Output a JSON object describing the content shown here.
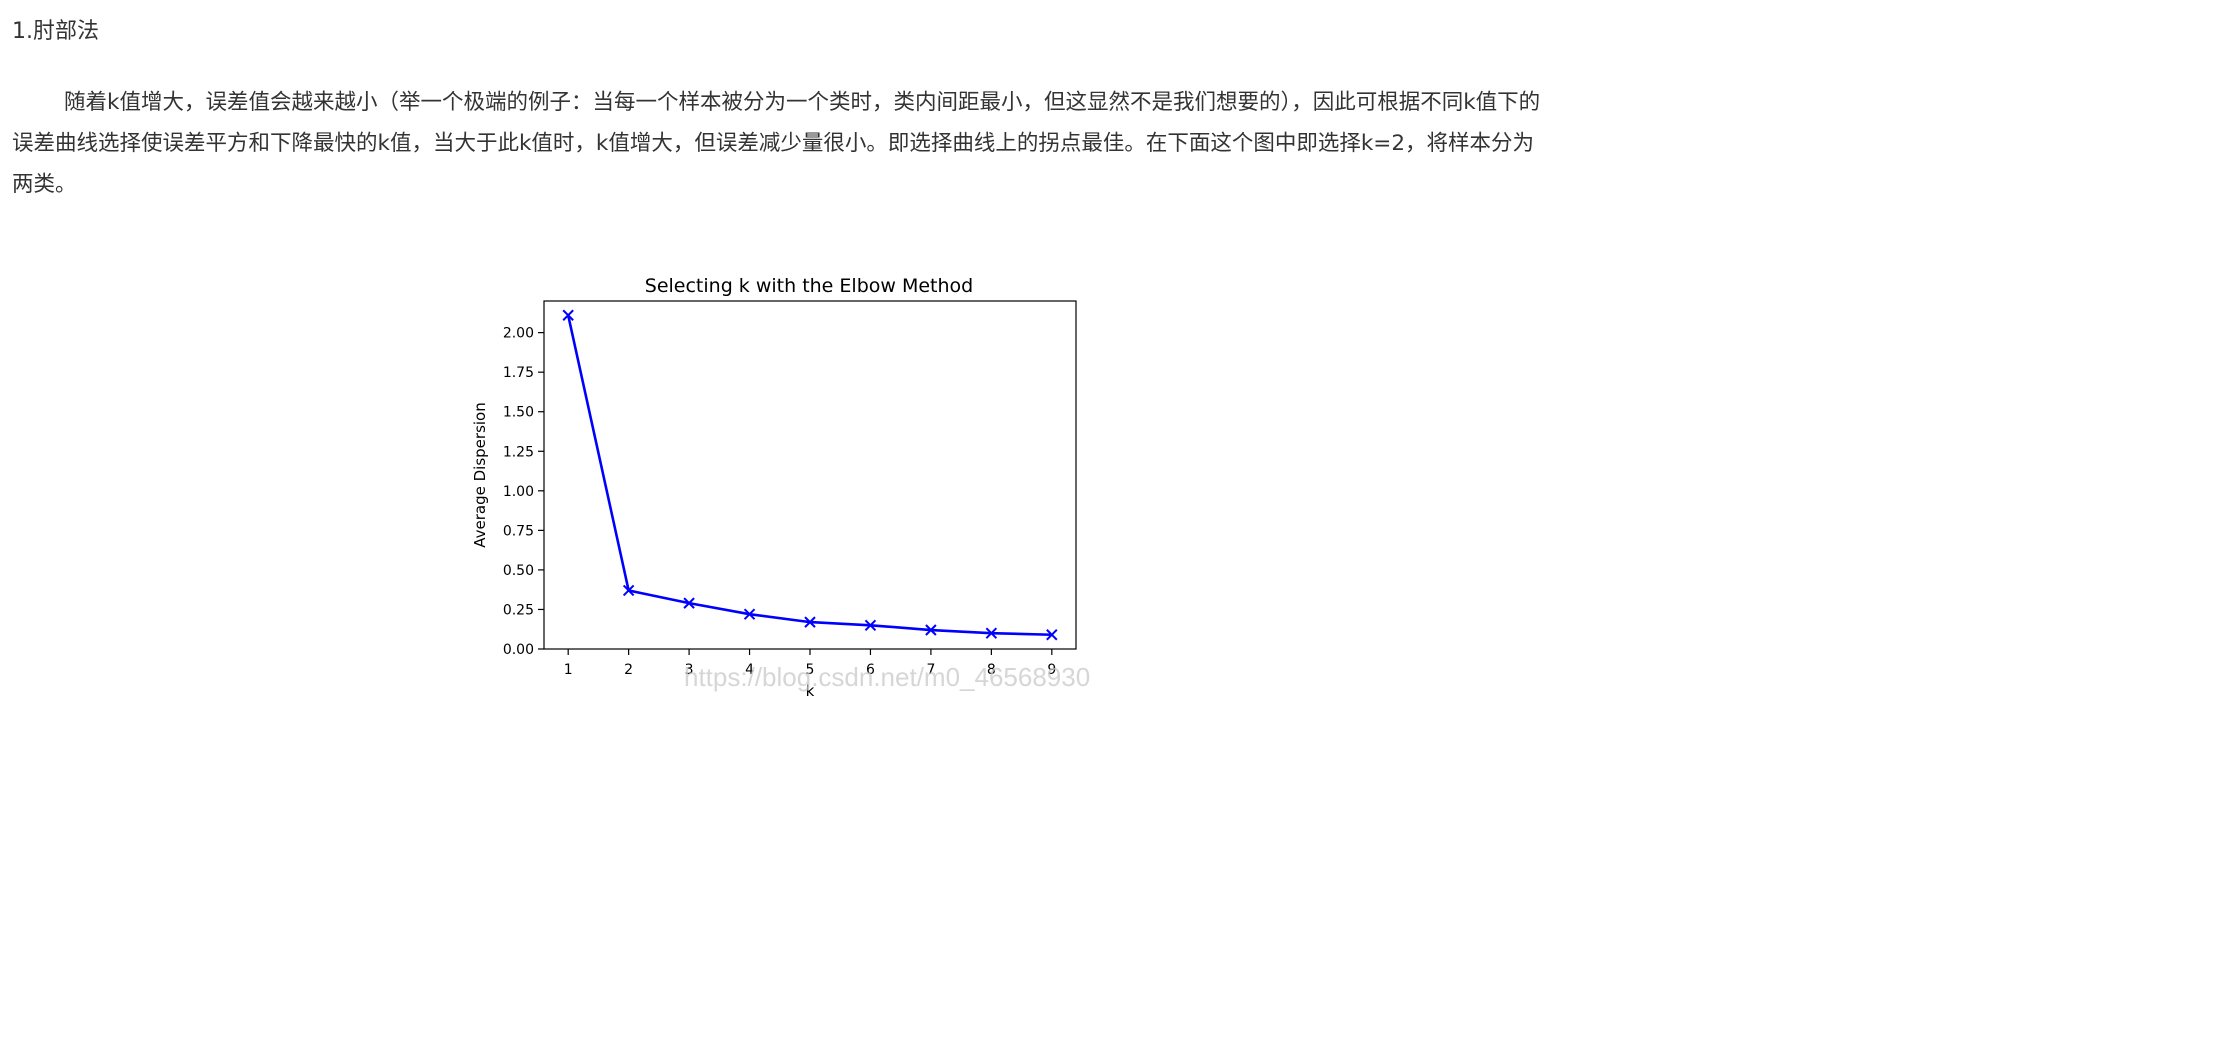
{
  "article": {
    "heading": "1.肘部法",
    "paragraph": "随着k值增大，误差值会越来越小（举一个极端的例子：当每一个样本被分为一个类时，类内间距最小，但这显然不是我们想要的），因此可根据不同k值下的误差曲线选择使误差平方和下降最快的k值，当大于此k值时，k值增大，但误差减少量很小。即选择曲线上的拐点最佳。在下面这个图中即选择k=2，将样本分为两类。"
  },
  "watermark": "https://blog.csdn.net/m0_46568930",
  "chart_data": {
    "type": "line",
    "title": "Selecting k with the Elbow Method",
    "xlabel": "k",
    "ylabel": "Average Dispersion",
    "x": [
      1,
      2,
      3,
      4,
      5,
      6,
      7,
      8,
      9
    ],
    "xlim": [
      0.6,
      9.4
    ],
    "ylim": [
      0.0,
      2.2
    ],
    "yticks": [
      "0.00",
      "0.25",
      "0.50",
      "0.75",
      "1.00",
      "1.25",
      "1.50",
      "1.75",
      "2.00"
    ],
    "xticks": [
      "1",
      "2",
      "3",
      "4",
      "5",
      "6",
      "7",
      "8",
      "9"
    ],
    "grid": false,
    "marker": "x",
    "color": "#0000ff",
    "series": [
      {
        "values": [
          2.11,
          0.37,
          0.29,
          0.22,
          0.17,
          0.15,
          0.12,
          0.1,
          0.09
        ]
      }
    ]
  }
}
